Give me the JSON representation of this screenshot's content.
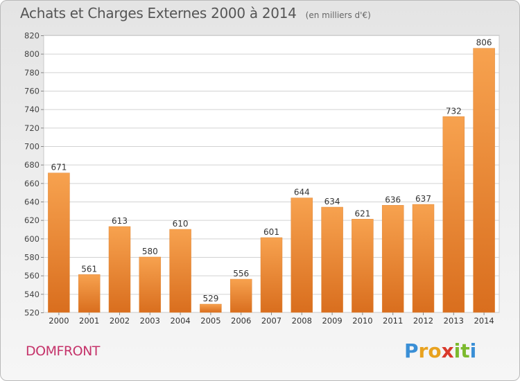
{
  "chart_data": {
    "type": "bar",
    "title": "Achats et Charges Externes 2000 à 2014",
    "subtitle": "(en milliers d'€)",
    "categories": [
      "2000",
      "2001",
      "2002",
      "2003",
      "2004",
      "2005",
      "2006",
      "2007",
      "2008",
      "2009",
      "2010",
      "2011",
      "2012",
      "2013",
      "2014"
    ],
    "values": [
      671,
      561,
      613,
      580,
      610,
      529,
      556,
      601,
      644,
      634,
      621,
      636,
      637,
      732,
      806
    ],
    "ylim": [
      520,
      820
    ],
    "yticks": [
      520,
      540,
      560,
      580,
      600,
      620,
      640,
      660,
      680,
      700,
      720,
      740,
      760,
      780,
      800,
      820
    ],
    "grid": true,
    "bar_color_light": "#f7a24f",
    "bar_color_dark": "#d96e1e"
  },
  "commune": "DOMFRONT",
  "logo": {
    "letters": [
      "P",
      "r",
      "o",
      "x",
      "i",
      "t",
      "i"
    ],
    "colors": [
      "#3a8fd6",
      "#e8a21f",
      "#e8a21f",
      "#d9392b",
      "#7cba2e",
      "#7cba2e",
      "#3a8fd6"
    ]
  }
}
